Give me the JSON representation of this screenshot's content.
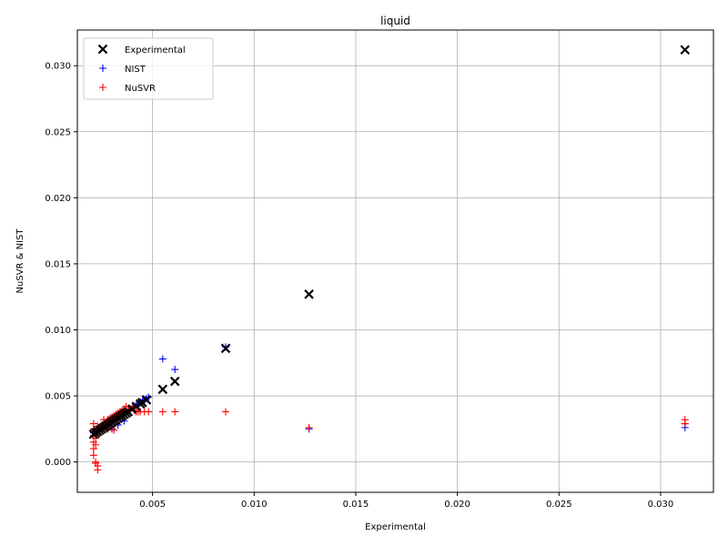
{
  "chart_data": {
    "type": "scatter",
    "title": "liquid",
    "xlabel": "Experimental",
    "ylabel": "NuSVR & NIST",
    "xlim": [
      0.0013,
      0.0326
    ],
    "ylim": [
      -0.0023,
      0.0327
    ],
    "x_ticks": [
      0.005,
      0.01,
      0.015,
      0.02,
      0.025,
      0.03
    ],
    "x_tick_labels": [
      "0.005",
      "0.010",
      "0.015",
      "0.020",
      "0.025",
      "0.030"
    ],
    "y_ticks": [
      0.0,
      0.005,
      0.01,
      0.015,
      0.02,
      0.025,
      0.03
    ],
    "y_tick_labels": [
      "0.000",
      "0.005",
      "0.010",
      "0.015",
      "0.020",
      "0.025",
      "0.030"
    ],
    "grid": true,
    "legend_position": "upper-left",
    "series": [
      {
        "name": "Experimental",
        "marker": "x",
        "color": "#000000",
        "points": [
          [
            0.0021,
            0.0021
          ],
          [
            0.0022,
            0.0022
          ],
          [
            0.0023,
            0.0023
          ],
          [
            0.0024,
            0.0024
          ],
          [
            0.0025,
            0.0025
          ],
          [
            0.0026,
            0.0026
          ],
          [
            0.0027,
            0.0027
          ],
          [
            0.0028,
            0.0028
          ],
          [
            0.0029,
            0.0029
          ],
          [
            0.003,
            0.003
          ],
          [
            0.0031,
            0.0031
          ],
          [
            0.0032,
            0.0032
          ],
          [
            0.0033,
            0.0033
          ],
          [
            0.0034,
            0.0034
          ],
          [
            0.0035,
            0.0035
          ],
          [
            0.0036,
            0.0036
          ],
          [
            0.0037,
            0.0037
          ],
          [
            0.0038,
            0.0038
          ],
          [
            0.004,
            0.004
          ],
          [
            0.0042,
            0.0042
          ],
          [
            0.0044,
            0.0044
          ],
          [
            0.0045,
            0.0045
          ],
          [
            0.0047,
            0.0047
          ],
          [
            0.0055,
            0.0055
          ],
          [
            0.0061,
            0.0061
          ],
          [
            0.0086,
            0.0086
          ],
          [
            0.0127,
            0.0127
          ],
          [
            0.0312,
            0.0312
          ]
        ]
      },
      {
        "name": "NIST",
        "marker": "+",
        "color": "#0000ff",
        "points": [
          [
            0.0021,
            0.0022
          ],
          [
            0.0022,
            0.0023
          ],
          [
            0.0023,
            0.0024
          ],
          [
            0.0024,
            0.0025
          ],
          [
            0.0025,
            0.0026
          ],
          [
            0.0026,
            0.0027
          ],
          [
            0.0027,
            0.0028
          ],
          [
            0.0028,
            0.0029
          ],
          [
            0.0029,
            0.003
          ],
          [
            0.003,
            0.0031
          ],
          [
            0.0031,
            0.0032
          ],
          [
            0.0032,
            0.0033
          ],
          [
            0.0033,
            0.0034
          ],
          [
            0.0034,
            0.0035
          ],
          [
            0.0035,
            0.0036
          ],
          [
            0.0036,
            0.0037
          ],
          [
            0.0037,
            0.0038
          ],
          [
            0.0038,
            0.0039
          ],
          [
            0.0039,
            0.004
          ],
          [
            0.004,
            0.0041
          ],
          [
            0.0041,
            0.0042
          ],
          [
            0.0042,
            0.0043
          ],
          [
            0.0043,
            0.0044
          ],
          [
            0.0044,
            0.0045
          ],
          [
            0.0045,
            0.0046
          ],
          [
            0.0046,
            0.0047
          ],
          [
            0.0047,
            0.0048
          ],
          [
            0.0048,
            0.0049
          ],
          [
            0.003,
            0.0025
          ],
          [
            0.0033,
            0.0028
          ],
          [
            0.0036,
            0.0031
          ],
          [
            0.0055,
            0.0078
          ],
          [
            0.0061,
            0.007
          ],
          [
            0.0086,
            0.0087
          ],
          [
            0.0127,
            0.0025
          ],
          [
            0.0312,
            0.0026
          ],
          [
            0.0312,
            0.0029
          ]
        ]
      },
      {
        "name": "NuSVR",
        "marker": "+",
        "color": "#ff0000",
        "points": [
          [
            0.0021,
            0.0029
          ],
          [
            0.0021,
            0.0025
          ],
          [
            0.0021,
            0.002
          ],
          [
            0.0021,
            0.0015
          ],
          [
            0.0021,
            0.001
          ],
          [
            0.0021,
            0.0005
          ],
          [
            0.0022,
            0.0
          ],
          [
            0.0022,
            -0.0001
          ],
          [
            0.0023,
            -0.0003
          ],
          [
            0.0023,
            -0.0006
          ],
          [
            0.0022,
            0.0013
          ],
          [
            0.0022,
            0.0018
          ],
          [
            0.0022,
            0.0022
          ],
          [
            0.0023,
            0.0024
          ],
          [
            0.0023,
            0.0027
          ],
          [
            0.0024,
            0.0023
          ],
          [
            0.0024,
            0.0026
          ],
          [
            0.0025,
            0.0025
          ],
          [
            0.0025,
            0.0028
          ],
          [
            0.0026,
            0.0026
          ],
          [
            0.0026,
            0.0029
          ],
          [
            0.0026,
            0.0032
          ],
          [
            0.0027,
            0.0028
          ],
          [
            0.0027,
            0.003
          ],
          [
            0.0028,
            0.0029
          ],
          [
            0.0028,
            0.0032
          ],
          [
            0.0029,
            0.003
          ],
          [
            0.0029,
            0.0033
          ],
          [
            0.003,
            0.0031
          ],
          [
            0.003,
            0.0034
          ],
          [
            0.0031,
            0.0032
          ],
          [
            0.0031,
            0.0035
          ],
          [
            0.0032,
            0.0033
          ],
          [
            0.0032,
            0.0036
          ],
          [
            0.0033,
            0.0034
          ],
          [
            0.0033,
            0.0037
          ],
          [
            0.0034,
            0.0035
          ],
          [
            0.0034,
            0.0038
          ],
          [
            0.0035,
            0.0036
          ],
          [
            0.0035,
            0.0039
          ],
          [
            0.0036,
            0.0037
          ],
          [
            0.0036,
            0.004
          ],
          [
            0.0037,
            0.0038
          ],
          [
            0.0037,
            0.0042
          ],
          [
            0.0038,
            0.0039
          ],
          [
            0.0039,
            0.004
          ],
          [
            0.004,
            0.0041
          ],
          [
            0.0041,
            0.0039
          ],
          [
            0.0042,
            0.0038
          ],
          [
            0.0043,
            0.0038
          ],
          [
            0.0044,
            0.0038
          ],
          [
            0.0046,
            0.0038
          ],
          [
            0.0048,
            0.0038
          ],
          [
            0.0031,
            0.0024
          ],
          [
            0.003,
            0.0027
          ],
          [
            0.0028,
            0.0025
          ],
          [
            0.0055,
            0.0038
          ],
          [
            0.0061,
            0.0038
          ],
          [
            0.0086,
            0.0038
          ],
          [
            0.0127,
            0.0026
          ],
          [
            0.0312,
            0.0032
          ],
          [
            0.0312,
            0.0029
          ]
        ]
      }
    ]
  }
}
